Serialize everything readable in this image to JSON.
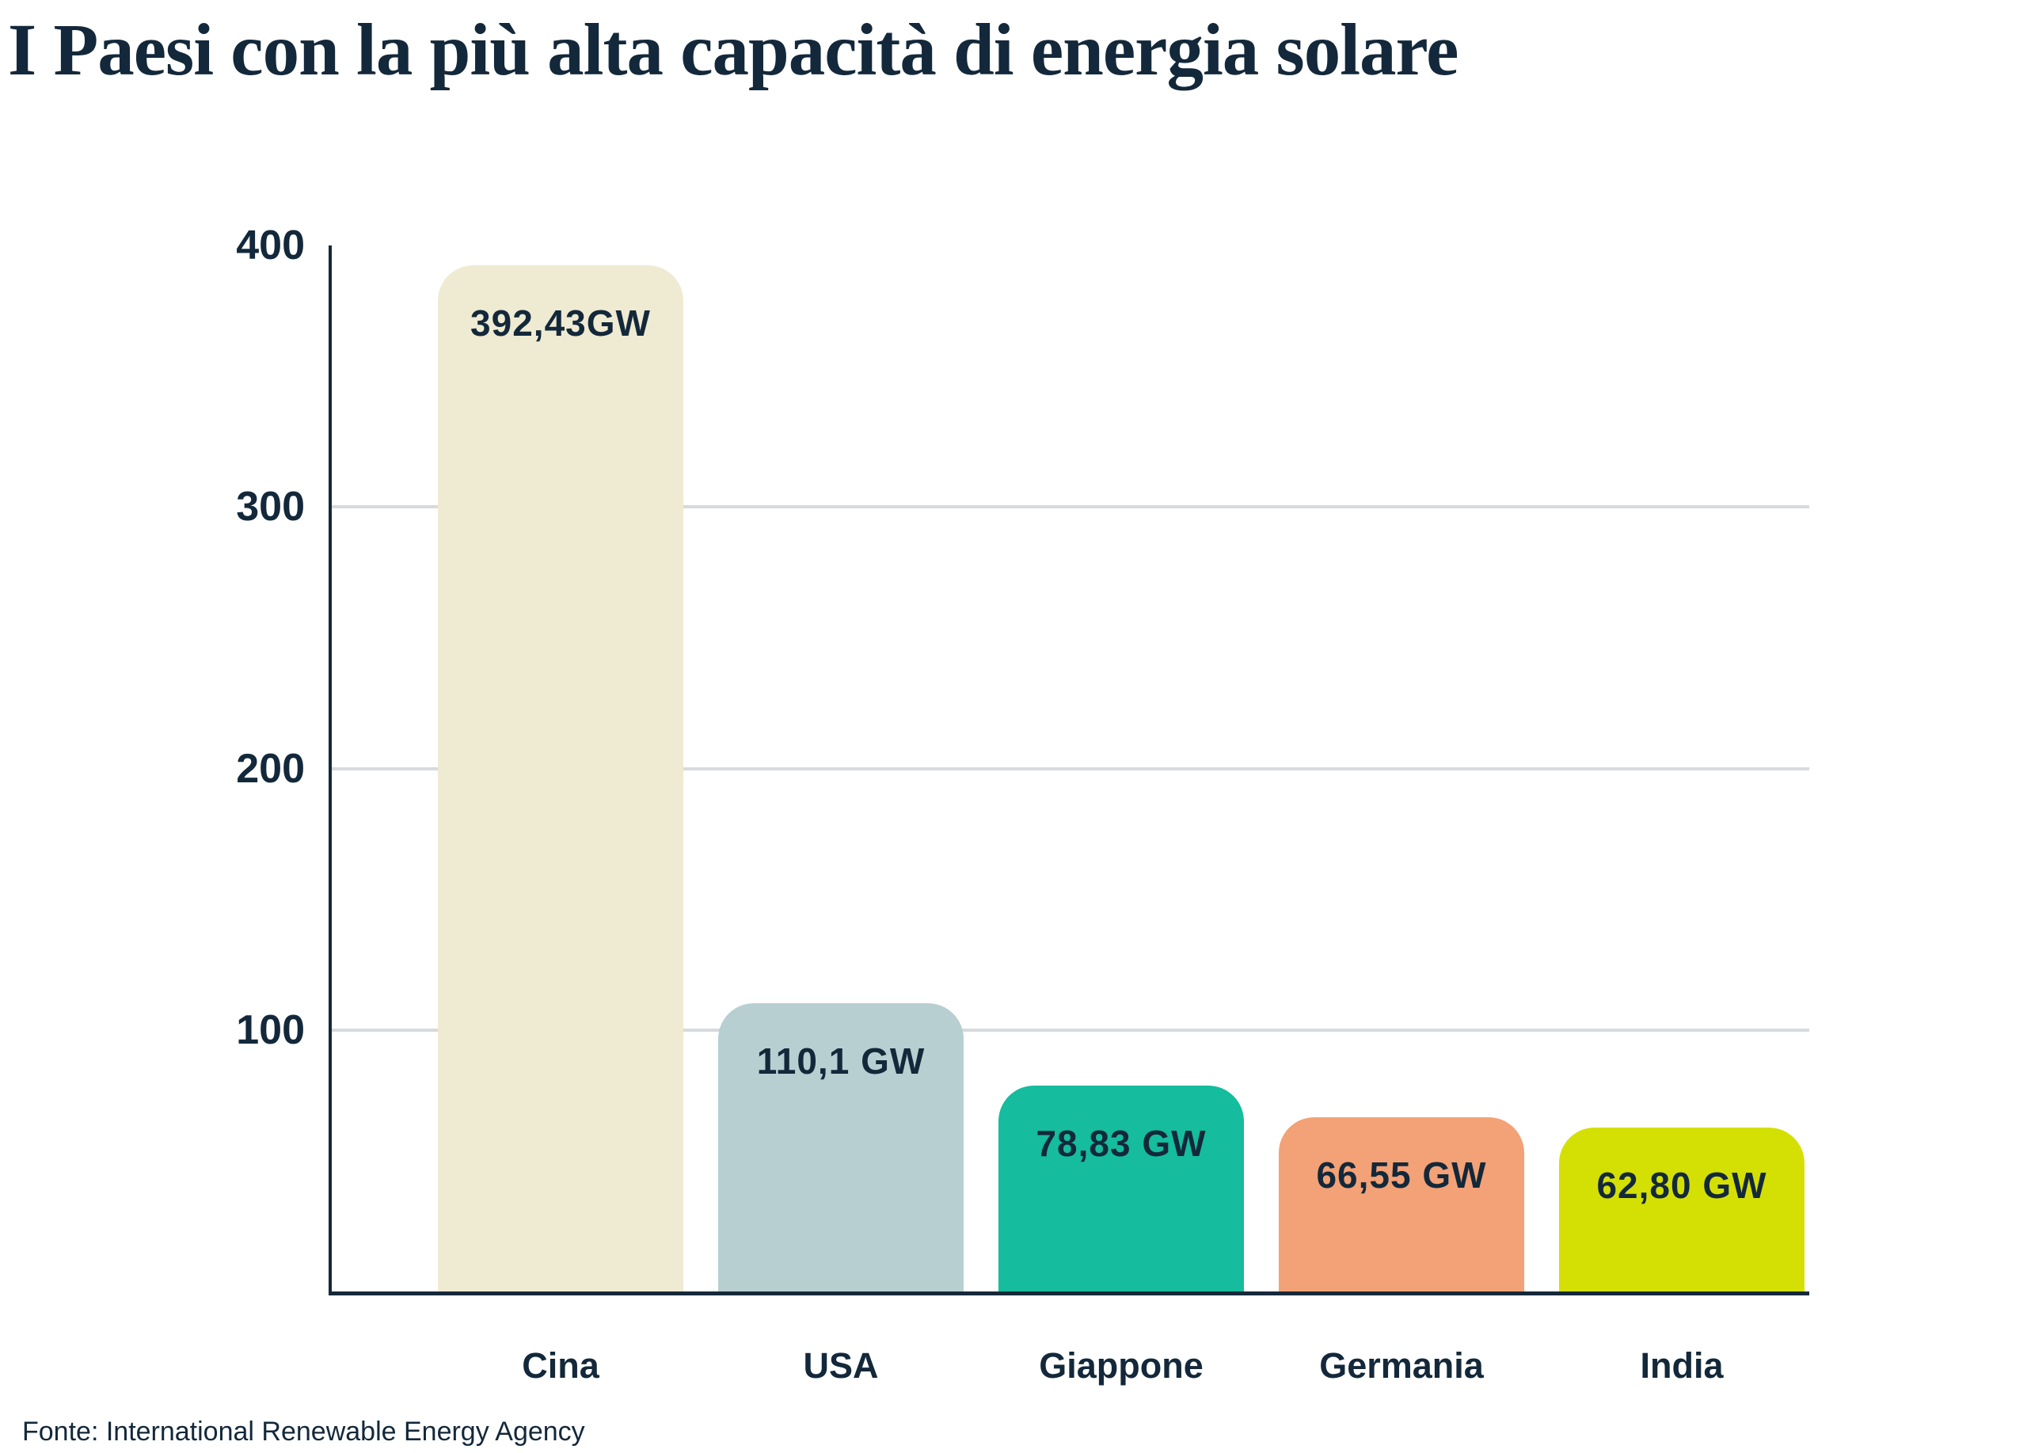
{
  "page": {
    "title": "I Paesi con la più alta capacità di energia solare",
    "source": "Fonte: International Renewable Energy Agency"
  },
  "chart_data": {
    "type": "bar",
    "title": "I Paesi con la più alta capacità di energia solare",
    "categories": [
      "Cina",
      "USA",
      "Giappone",
      "Germania",
      "India"
    ],
    "values": [
      392.43,
      110.1,
      78.83,
      66.55,
      62.8
    ],
    "value_labels": [
      "392,43GW",
      "110,1 GW",
      "78,83 GW",
      "66,55 GW",
      "62,80 GW"
    ],
    "bar_colors": [
      "#efead2",
      "#b7cfd0",
      "#15bc9d",
      "#f3a176",
      "#d4e003"
    ],
    "unit": "GW",
    "xlabel": "",
    "ylabel": "",
    "ylim": [
      0,
      400
    ],
    "yticks": [
      400,
      300,
      200,
      100
    ],
    "gridlines": [
      300,
      200,
      100
    ],
    "grid": "horizontal",
    "legend": "none",
    "source": "Fonte: International Renewable Energy Agency"
  },
  "colors": {
    "text": "#13283a",
    "axis": "#16293a",
    "gridline": "#d6dadd",
    "background": "#ffffff"
  }
}
